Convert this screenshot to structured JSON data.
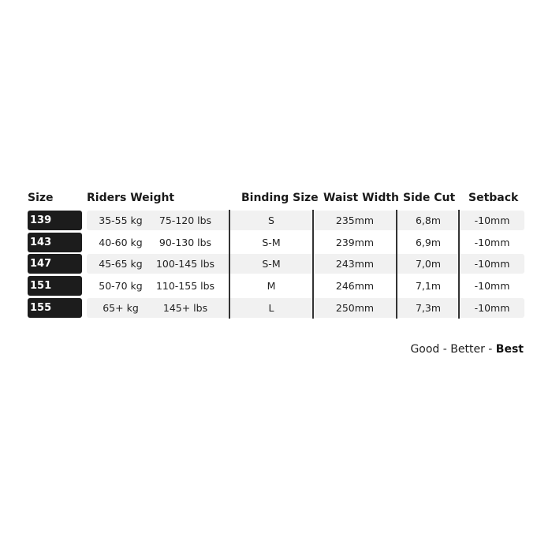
{
  "headers": {
    "size": "Size",
    "riders_weight": "Riders Weight",
    "binding_size": "Binding Size",
    "waist_width": "Waist Width",
    "side_cut": "Side Cut",
    "setback": "Setback"
  },
  "rows": [
    {
      "size": "139",
      "kg": "35-55 kg",
      "lbs": "75-120 lbs",
      "binding": "S",
      "waist": "235mm",
      "sidecut": "6,8m",
      "setback": "-10mm"
    },
    {
      "size": "143",
      "kg": "40-60 kg",
      "lbs": "90-130 lbs",
      "binding": "S-M",
      "waist": "239mm",
      "sidecut": "6,9m",
      "setback": "-10mm"
    },
    {
      "size": "147",
      "kg": "45-65 kg",
      "lbs": "100-145 lbs",
      "binding": "S-M",
      "waist": "243mm",
      "sidecut": "7,0m",
      "setback": "-10mm"
    },
    {
      "size": "151",
      "kg": "50-70 kg",
      "lbs": "110-155 lbs",
      "binding": "M",
      "waist": "246mm",
      "sidecut": "7,1m",
      "setback": "-10mm"
    },
    {
      "size": "155",
      "kg": "65+ kg",
      "lbs": "145+ lbs",
      "binding": "L",
      "waist": "250mm",
      "sidecut": "7,3m",
      "setback": "-10mm"
    }
  ],
  "footer": {
    "good": "Good",
    "sep1": " - ",
    "better": "Better",
    "sep2": " - ",
    "best": "Best"
  }
}
